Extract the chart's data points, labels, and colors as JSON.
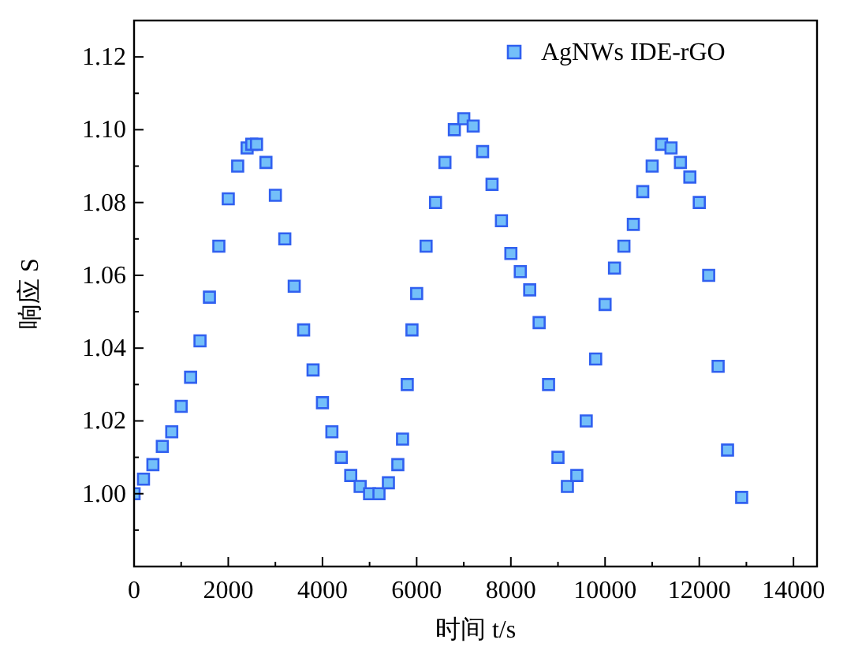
{
  "chart_data": {
    "type": "scatter",
    "xlabel": "时间 t/s",
    "ylabel": "响应 S",
    "legend": "top right",
    "marker": "square",
    "grid": false,
    "xlim": [
      0,
      14500
    ],
    "ylim": [
      0.98,
      1.13
    ],
    "xticks": [
      0,
      {
        "value": 1000,
        "label": null
      },
      2000,
      {
        "value": 3000,
        "label": null
      },
      4000,
      {
        "value": 5000,
        "label": null
      },
      6000,
      {
        "value": 7000,
        "label": null
      },
      8000,
      {
        "value": 9000,
        "label": null
      },
      10000,
      {
        "value": 11000,
        "label": null
      },
      12000,
      {
        "value": 13000,
        "label": null
      },
      14000
    ],
    "yticks": [
      {
        "value": 0.99,
        "label": null
      },
      {
        "value": 1.0,
        "label": "1.00"
      },
      {
        "value": 1.01,
        "label": null
      },
      {
        "value": 1.02,
        "label": "1.02"
      },
      {
        "value": 1.03,
        "label": null
      },
      {
        "value": 1.04,
        "label": "1.04"
      },
      {
        "value": 1.05,
        "label": null
      },
      {
        "value": 1.06,
        "label": "1.06"
      },
      {
        "value": 1.07,
        "label": null
      },
      {
        "value": 1.08,
        "label": "1.08"
      },
      {
        "value": 1.09,
        "label": null
      },
      {
        "value": 1.1,
        "label": "1.10"
      },
      {
        "value": 1.11,
        "label": null
      },
      {
        "value": 1.12,
        "label": "1.12"
      }
    ],
    "series": [
      {
        "name": "AgNWs IDE-rGO",
        "color": "#3060f0",
        "x": [
          0,
          200,
          400,
          600,
          800,
          1000,
          1200,
          1400,
          1600,
          1800,
          2000,
          2200,
          2400,
          2500,
          2600,
          2800,
          3000,
          3200,
          3400,
          3600,
          3800,
          4000,
          4200,
          4400,
          4600,
          4800,
          5000,
          5200,
          5400,
          5600,
          5700,
          5800,
          5900,
          6000,
          6200,
          6400,
          6600,
          6800,
          7000,
          7200,
          7400,
          7600,
          7800,
          8000,
          8200,
          8400,
          8600,
          8800,
          9000,
          9200,
          9400,
          9600,
          9800,
          10000,
          10200,
          10400,
          10600,
          10800,
          11000,
          11200,
          11400,
          11600,
          11800,
          12000,
          12200,
          12400,
          12600,
          12900
        ],
        "values": [
          1.0,
          1.004,
          1.008,
          1.013,
          1.017,
          1.024,
          1.032,
          1.042,
          1.054,
          1.068,
          1.081,
          1.09,
          1.095,
          1.096,
          1.096,
          1.091,
          1.082,
          1.07,
          1.057,
          1.045,
          1.034,
          1.025,
          1.017,
          1.01,
          1.005,
          1.002,
          1.0,
          1.0,
          1.003,
          1.008,
          1.015,
          1.03,
          1.045,
          1.055,
          1.068,
          1.08,
          1.091,
          1.1,
          1.103,
          1.101,
          1.094,
          1.085,
          1.075,
          1.066,
          1.061,
          1.056,
          1.047,
          1.03,
          1.01,
          1.002,
          1.005,
          1.02,
          1.037,
          1.052,
          1.062,
          1.068,
          1.074,
          1.083,
          1.09,
          1.096,
          1.095,
          1.091,
          1.087,
          1.08,
          1.06,
          1.035,
          1.012,
          0.999
        ]
      }
    ]
  }
}
